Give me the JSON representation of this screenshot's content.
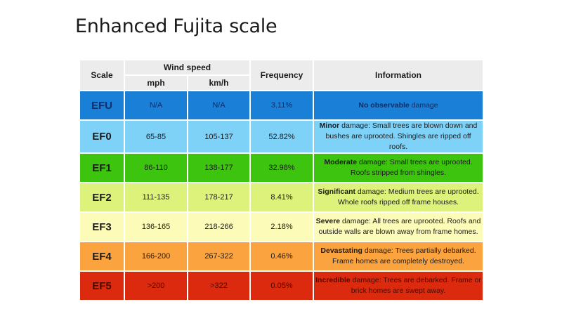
{
  "title": "Enhanced Fujita scale",
  "table": {
    "headers": {
      "scale": "Scale",
      "wind_speed": "Wind speed",
      "mph": "mph",
      "kmh": "km/h",
      "frequency": "Frequency",
      "information": "Information"
    },
    "rows": [
      {
        "scale": "EFU",
        "mph": "N/A",
        "kmh": "N/A",
        "frequency": "3.11%",
        "info_bold": "No observable",
        "info_rest": " damage",
        "color": "#1a7fd6",
        "text_color": "#0b2f6b"
      },
      {
        "scale": "EF0",
        "mph": "65-85",
        "kmh": "105-137",
        "frequency": "52.82%",
        "info_bold": "Minor",
        "info_rest": " damage: Small trees are blown down and bushes are uprooted. Shingles are ripped off roofs.",
        "color": "#7fd2f7",
        "text_color": "#1c1c1c"
      },
      {
        "scale": "EF1",
        "mph": "86-110",
        "kmh": "138-177",
        "frequency": "32.98%",
        "info_bold": "Moderate",
        "info_rest": " damage: Small trees are uprooted. Roofs stripped from shingles.",
        "color": "#3dc40e",
        "text_color": "#1c1c1c"
      },
      {
        "scale": "EF2",
        "mph": "111-135",
        "kmh": "178-217",
        "frequency": "8.41%",
        "info_bold": "Significant",
        "info_rest": " damage: Medium trees are uprooted. Whole roofs ripped off frame houses.",
        "color": "#dcf27a",
        "text_color": "#1c1c1c"
      },
      {
        "scale": "EF3",
        "mph": "136-165",
        "kmh": "218-266",
        "frequency": "2.18%",
        "info_bold": "Severe",
        "info_rest": " damage: All trees are uprooted. Roofs and outside walls are blown away from frame homes.",
        "color": "#fdfbb8",
        "text_color": "#1c1c1c"
      },
      {
        "scale": "EF4",
        "mph": "166-200",
        "kmh": "267-322",
        "frequency": "0.46%",
        "info_bold": "Devastating",
        "info_rest": " damage: Trees partially debarked. Frame homes are completely destroyed.",
        "color": "#fba33f",
        "text_color": "#1c1c1c"
      },
      {
        "scale": "EF5",
        "mph": ">200",
        "kmh": ">322",
        "frequency": "0.05%",
        "info_bold": "Incredible",
        "info_rest": " damage: Trees are debarked. Frame or brick homes are swept away.",
        "color": "#db2a0e",
        "text_color": "#4a0a00"
      }
    ]
  }
}
